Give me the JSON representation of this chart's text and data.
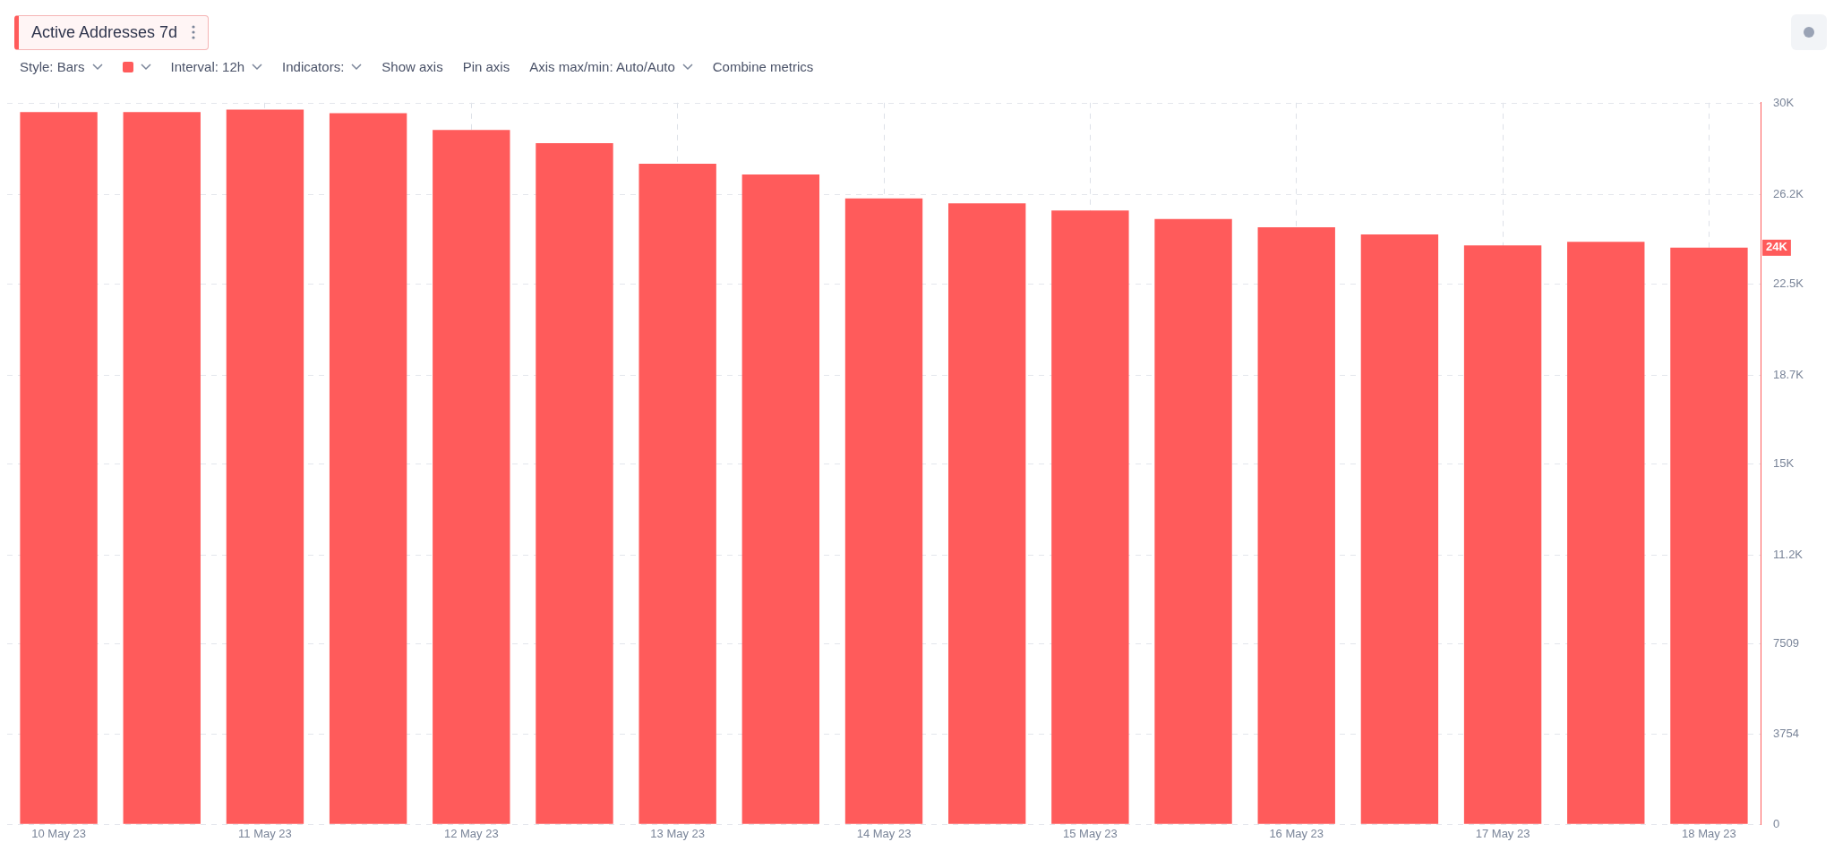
{
  "chart_data": {
    "type": "bar",
    "title": "Active Addresses 7d",
    "annotations": [
      "Style: Bars",
      "Interval: 12h",
      "Indicators:",
      "Show axis",
      "Pin axis",
      "Axis max/min: Auto/Auto",
      "Combine metrics",
      "24K"
    ],
    "categories": [
      "10 May 23",
      null,
      "11 May 23",
      null,
      "12 May 23",
      null,
      "13 May 23",
      null,
      "14 May 23",
      null,
      "15 May 23",
      null,
      "16 May 23",
      null,
      "17 May 23",
      null,
      "18 May 23"
    ],
    "series": [
      {
        "color": "#ff5b5b",
        "values": [
          29650,
          29650,
          29750,
          29600,
          28900,
          28350,
          27500,
          27050,
          26050,
          25850,
          25550,
          25200,
          24850,
          24550,
          24100,
          24250,
          24000
        ]
      }
    ],
    "ylim": [
      0,
      30036
    ],
    "yticks": [
      0,
      3754,
      7509,
      {
        "value": 11200,
        "label": "11.2K"
      },
      {
        "value": 15000,
        "label": "15K"
      },
      {
        "value": 18700,
        "label": "18.7K"
      },
      {
        "value": 22500,
        "label": "22.5K"
      },
      {
        "value": 26200,
        "label": "26.2K"
      },
      {
        "value": 30000,
        "label": "30K"
      }
    ],
    "grid": true,
    "legend": false
  }
}
